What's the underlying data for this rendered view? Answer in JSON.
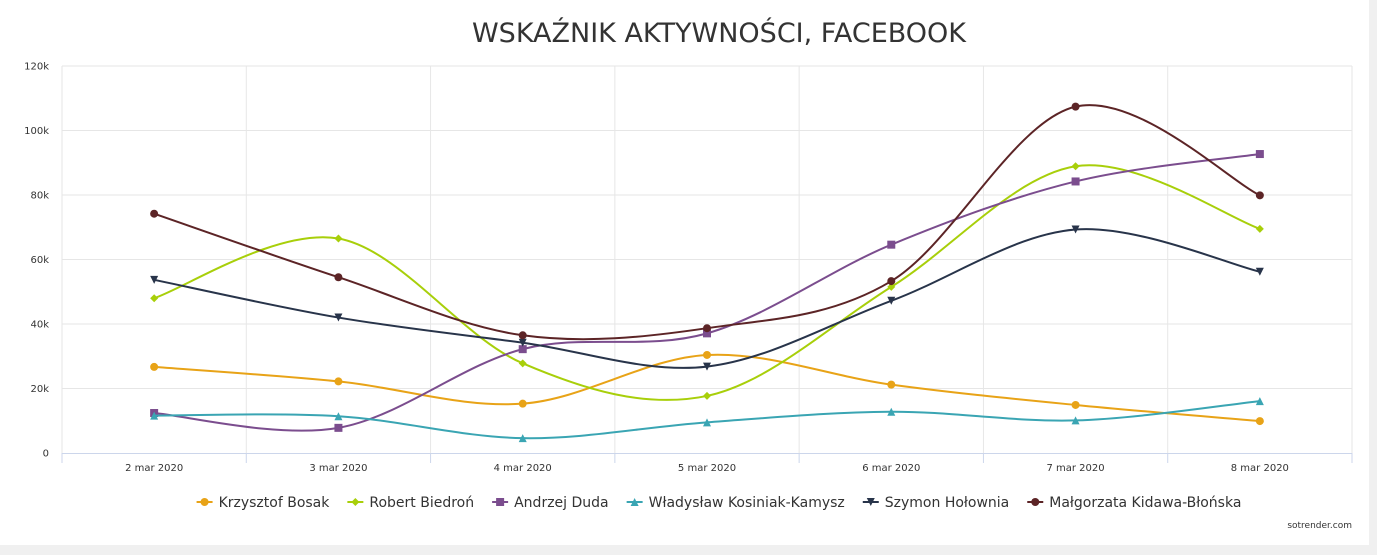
{
  "credit": "sotrender.com",
  "chart_data": {
    "type": "line",
    "title": "WSKAŹNIK AKTYWNOŚCI, FACEBOOK",
    "xlabel": "",
    "ylabel": "",
    "categories": [
      "2 mar 2020",
      "3 mar 2020",
      "4 mar 2020",
      "5 mar 2020",
      "6 mar 2020",
      "7 mar 2020",
      "8 mar 2020"
    ],
    "ylim": [
      0,
      120000
    ],
    "yticks": [
      0,
      20000,
      40000,
      60000,
      80000,
      100000,
      120000
    ],
    "ytick_labels": [
      "0",
      "20k",
      "40k",
      "60k",
      "80k",
      "100k",
      "120k"
    ],
    "grid": true,
    "legend_position": "bottom",
    "series": [
      {
        "name": "Krzysztof Bosak",
        "color": "#e8a317",
        "marker": "circle",
        "values": [
          26700,
          22200,
          15300,
          30400,
          21200,
          14900,
          9900
        ]
      },
      {
        "name": "Robert Biedroń",
        "color": "#a8cf0a",
        "marker": "diamond",
        "values": [
          48000,
          66500,
          27800,
          17700,
          51500,
          88900,
          69500
        ]
      },
      {
        "name": "Andrzej Duda",
        "color": "#7b4d8e",
        "marker": "square",
        "values": [
          12400,
          7800,
          32200,
          37100,
          64600,
          84200,
          92700
        ]
      },
      {
        "name": "Władysław Kosiniak-Kamysz",
        "color": "#3aa5b3",
        "marker": "triangle",
        "values": [
          11600,
          11400,
          4600,
          9500,
          12800,
          10100,
          16100
        ]
      },
      {
        "name": "Szymon Hołownia",
        "color": "#28344a",
        "marker": "triangle-down",
        "values": [
          53700,
          42000,
          34200,
          26800,
          47200,
          69300,
          56200
        ]
      },
      {
        "name": "Małgorzata Kidawa-Błońska",
        "color": "#5c2426",
        "marker": "circle",
        "values": [
          74200,
          54500,
          36500,
          38700,
          53300,
          107400,
          79900
        ]
      }
    ]
  }
}
